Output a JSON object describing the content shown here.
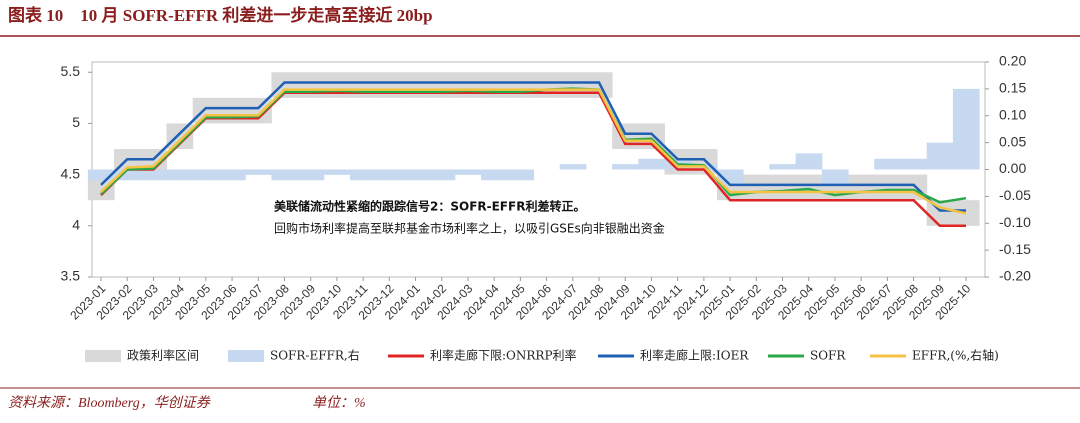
{
  "chart_data": {
    "type": "line",
    "title": "图表 10　10 月 SOFR-EFFR 利差进一步走高至接近 20bp",
    "annotations": [
      "美联储流动性紧缩的跟踪信号2：SOFR-EFFR利差转正。",
      "回购市场利率提高至联邦基金市场利率之上，以吸引GSEs向非银融出资金"
    ],
    "categories": [
      "2023-01",
      "2023-02",
      "2023-03",
      "2023-04",
      "2023-05",
      "2023-06",
      "2023-07",
      "2023-08",
      "2023-09",
      "2023-10",
      "2023-11",
      "2023-12",
      "2024-01",
      "2024-02",
      "2024-03",
      "2024-04",
      "2024-05",
      "2024-06",
      "2024-07",
      "2024-08",
      "2024-09",
      "2024-10",
      "2024-11",
      "2024-12",
      "2025-01",
      "2025-02",
      "2025-03",
      "2025-04",
      "2025-05",
      "2025-06",
      "2025-07",
      "2025-08",
      "2025-09",
      "2025-10"
    ],
    "ylim": [
      3.5,
      5.6
    ],
    "yticks": [
      3.5,
      4,
      4.5,
      5,
      5.5
    ],
    "y2lim": [
      -0.2,
      0.2
    ],
    "y2ticks": [
      {
        "value": 0.2,
        "label": "0.20"
      },
      0.15,
      {
        "value": 0.1,
        "label": "0.10"
      },
      0.05,
      {
        "value": 0,
        "label": "0.00"
      },
      -0.05,
      {
        "value": -0.1,
        "label": "-0.10"
      },
      -0.15,
      {
        "value": -0.2,
        "label": "-0.20"
      }
    ],
    "series": [
      {
        "name": "政策利率区间",
        "type": "band",
        "color": "#d9d9d9",
        "low": [
          4.25,
          4.5,
          4.5,
          4.75,
          5,
          5,
          5,
          5.25,
          5.25,
          5.25,
          5.25,
          5.25,
          5.25,
          5.25,
          5.25,
          5.25,
          5.25,
          5.25,
          5.25,
          5.25,
          4.75,
          4.75,
          4.5,
          4.5,
          4.25,
          4.25,
          4.25,
          4.25,
          4.25,
          4.25,
          4.25,
          4.25,
          4,
          4
        ],
        "values": [
          4.5,
          4.75,
          4.75,
          5,
          5.25,
          5.25,
          5.25,
          5.5,
          5.5,
          5.5,
          5.5,
          5.5,
          5.5,
          5.5,
          5.5,
          5.5,
          5.5,
          5.5,
          5.5,
          5.5,
          5,
          5,
          4.75,
          4.75,
          4.5,
          4.5,
          4.5,
          4.5,
          4.5,
          4.5,
          4.5,
          4.5,
          4.25,
          4.25
        ]
      },
      {
        "name": "SOFR-EFFR,右",
        "type": "area",
        "axis": "y2",
        "color": "#c6d9f1",
        "values": [
          -0.02,
          -0.02,
          -0.02,
          -0.02,
          -0.02,
          -0.02,
          -0.01,
          -0.02,
          -0.02,
          -0.01,
          -0.02,
          -0.02,
          -0.02,
          -0.02,
          -0.01,
          -0.02,
          -0.02,
          0,
          0.01,
          0,
          0.01,
          0.02,
          0.02,
          0.01,
          -0.03,
          0,
          0.01,
          0.03,
          -0.03,
          0,
          0.02,
          0.02,
          0.05,
          0.15
        ]
      },
      {
        "name": "利率走廊下限:ONRRP利率",
        "type": "line",
        "color": "#e02424",
        "values": [
          4.3,
          4.55,
          4.55,
          4.8,
          5.05,
          5.05,
          5.05,
          5.3,
          5.3,
          5.3,
          5.3,
          5.3,
          5.3,
          5.3,
          5.3,
          5.3,
          5.3,
          5.3,
          5.3,
          5.3,
          4.8,
          4.8,
          4.55,
          4.55,
          4.25,
          4.25,
          4.25,
          4.25,
          4.25,
          4.25,
          4.25,
          4.25,
          4,
          4
        ]
      },
      {
        "name": "利率走廊上限:IOER",
        "type": "line",
        "color": "#1f5fb4",
        "values": [
          4.4,
          4.65,
          4.65,
          4.9,
          5.15,
          5.15,
          5.15,
          5.4,
          5.4,
          5.4,
          5.4,
          5.4,
          5.4,
          5.4,
          5.4,
          5.4,
          5.4,
          5.4,
          5.4,
          5.4,
          4.9,
          4.9,
          4.65,
          4.65,
          4.4,
          4.4,
          4.4,
          4.4,
          4.4,
          4.4,
          4.4,
          4.4,
          4.15,
          4.15
        ]
      },
      {
        "name": "SOFR",
        "type": "line",
        "color": "#2aa84a",
        "values": [
          4.31,
          4.55,
          4.56,
          4.81,
          5.06,
          5.06,
          5.07,
          5.31,
          5.31,
          5.32,
          5.31,
          5.31,
          5.31,
          5.31,
          5.32,
          5.31,
          5.31,
          5.33,
          5.34,
          5.33,
          4.84,
          4.85,
          4.6,
          4.59,
          4.3,
          4.33,
          4.34,
          4.36,
          4.3,
          4.33,
          4.35,
          4.35,
          4.23,
          4.27
        ]
      },
      {
        "name": "EFFR,(%,右轴)",
        "type": "line",
        "color": "#f5c342",
        "values": [
          4.33,
          4.57,
          4.58,
          4.83,
          5.08,
          5.08,
          5.08,
          5.33,
          5.33,
          5.33,
          5.33,
          5.33,
          5.33,
          5.33,
          5.33,
          5.33,
          5.33,
          5.33,
          5.33,
          5.33,
          4.83,
          4.83,
          4.58,
          4.58,
          4.33,
          4.33,
          4.33,
          4.33,
          4.33,
          4.33,
          4.33,
          4.33,
          4.18,
          4.12
        ]
      }
    ]
  },
  "footer": {
    "source": "资料来源：Bloomberg，华创证券",
    "unit": "单位：%"
  }
}
